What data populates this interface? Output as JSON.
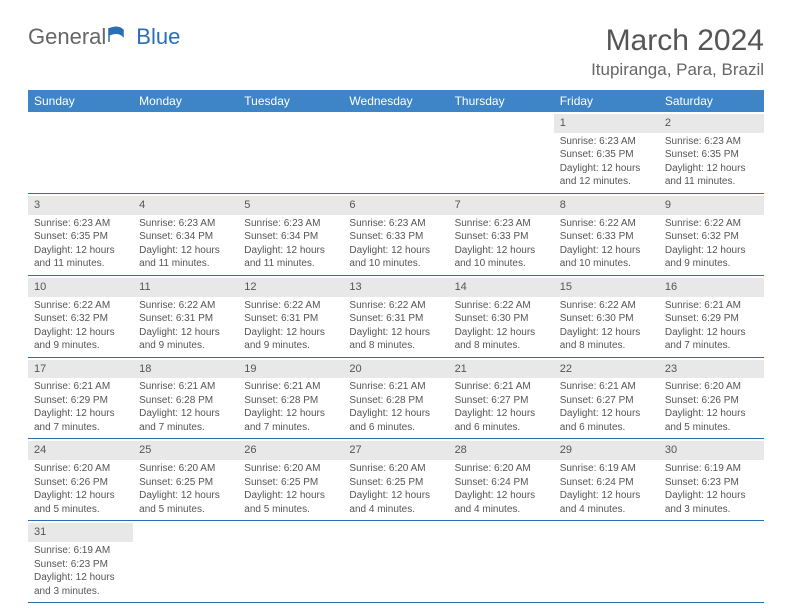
{
  "logo": {
    "text1": "General",
    "text2": "Blue"
  },
  "title": "March 2024",
  "location": "Itupiranga, Para, Brazil",
  "weekdays": [
    "Sunday",
    "Monday",
    "Tuesday",
    "Wednesday",
    "Thursday",
    "Friday",
    "Saturday"
  ],
  "colors": {
    "header_bg": "#3d85c6",
    "header_text": "#ffffff",
    "daynum_bg": "#e8e8e8",
    "row_border": "#2a6fb5",
    "text": "#555555"
  },
  "cells": [
    [
      {
        "n": "",
        "lines": []
      },
      {
        "n": "",
        "lines": []
      },
      {
        "n": "",
        "lines": []
      },
      {
        "n": "",
        "lines": []
      },
      {
        "n": "",
        "lines": []
      },
      {
        "n": "1",
        "lines": [
          "Sunrise: 6:23 AM",
          "Sunset: 6:35 PM",
          "Daylight: 12 hours",
          "and 12 minutes."
        ]
      },
      {
        "n": "2",
        "lines": [
          "Sunrise: 6:23 AM",
          "Sunset: 6:35 PM",
          "Daylight: 12 hours",
          "and 11 minutes."
        ]
      }
    ],
    [
      {
        "n": "3",
        "lines": [
          "Sunrise: 6:23 AM",
          "Sunset: 6:35 PM",
          "Daylight: 12 hours",
          "and 11 minutes."
        ]
      },
      {
        "n": "4",
        "lines": [
          "Sunrise: 6:23 AM",
          "Sunset: 6:34 PM",
          "Daylight: 12 hours",
          "and 11 minutes."
        ]
      },
      {
        "n": "5",
        "lines": [
          "Sunrise: 6:23 AM",
          "Sunset: 6:34 PM",
          "Daylight: 12 hours",
          "and 11 minutes."
        ]
      },
      {
        "n": "6",
        "lines": [
          "Sunrise: 6:23 AM",
          "Sunset: 6:33 PM",
          "Daylight: 12 hours",
          "and 10 minutes."
        ]
      },
      {
        "n": "7",
        "lines": [
          "Sunrise: 6:23 AM",
          "Sunset: 6:33 PM",
          "Daylight: 12 hours",
          "and 10 minutes."
        ]
      },
      {
        "n": "8",
        "lines": [
          "Sunrise: 6:22 AM",
          "Sunset: 6:33 PM",
          "Daylight: 12 hours",
          "and 10 minutes."
        ]
      },
      {
        "n": "9",
        "lines": [
          "Sunrise: 6:22 AM",
          "Sunset: 6:32 PM",
          "Daylight: 12 hours",
          "and 9 minutes."
        ]
      }
    ],
    [
      {
        "n": "10",
        "lines": [
          "Sunrise: 6:22 AM",
          "Sunset: 6:32 PM",
          "Daylight: 12 hours",
          "and 9 minutes."
        ]
      },
      {
        "n": "11",
        "lines": [
          "Sunrise: 6:22 AM",
          "Sunset: 6:31 PM",
          "Daylight: 12 hours",
          "and 9 minutes."
        ]
      },
      {
        "n": "12",
        "lines": [
          "Sunrise: 6:22 AM",
          "Sunset: 6:31 PM",
          "Daylight: 12 hours",
          "and 9 minutes."
        ]
      },
      {
        "n": "13",
        "lines": [
          "Sunrise: 6:22 AM",
          "Sunset: 6:31 PM",
          "Daylight: 12 hours",
          "and 8 minutes."
        ]
      },
      {
        "n": "14",
        "lines": [
          "Sunrise: 6:22 AM",
          "Sunset: 6:30 PM",
          "Daylight: 12 hours",
          "and 8 minutes."
        ]
      },
      {
        "n": "15",
        "lines": [
          "Sunrise: 6:22 AM",
          "Sunset: 6:30 PM",
          "Daylight: 12 hours",
          "and 8 minutes."
        ]
      },
      {
        "n": "16",
        "lines": [
          "Sunrise: 6:21 AM",
          "Sunset: 6:29 PM",
          "Daylight: 12 hours",
          "and 7 minutes."
        ]
      }
    ],
    [
      {
        "n": "17",
        "lines": [
          "Sunrise: 6:21 AM",
          "Sunset: 6:29 PM",
          "Daylight: 12 hours",
          "and 7 minutes."
        ]
      },
      {
        "n": "18",
        "lines": [
          "Sunrise: 6:21 AM",
          "Sunset: 6:28 PM",
          "Daylight: 12 hours",
          "and 7 minutes."
        ]
      },
      {
        "n": "19",
        "lines": [
          "Sunrise: 6:21 AM",
          "Sunset: 6:28 PM",
          "Daylight: 12 hours",
          "and 7 minutes."
        ]
      },
      {
        "n": "20",
        "lines": [
          "Sunrise: 6:21 AM",
          "Sunset: 6:28 PM",
          "Daylight: 12 hours",
          "and 6 minutes."
        ]
      },
      {
        "n": "21",
        "lines": [
          "Sunrise: 6:21 AM",
          "Sunset: 6:27 PM",
          "Daylight: 12 hours",
          "and 6 minutes."
        ]
      },
      {
        "n": "22",
        "lines": [
          "Sunrise: 6:21 AM",
          "Sunset: 6:27 PM",
          "Daylight: 12 hours",
          "and 6 minutes."
        ]
      },
      {
        "n": "23",
        "lines": [
          "Sunrise: 6:20 AM",
          "Sunset: 6:26 PM",
          "Daylight: 12 hours",
          "and 5 minutes."
        ]
      }
    ],
    [
      {
        "n": "24",
        "lines": [
          "Sunrise: 6:20 AM",
          "Sunset: 6:26 PM",
          "Daylight: 12 hours",
          "and 5 minutes."
        ]
      },
      {
        "n": "25",
        "lines": [
          "Sunrise: 6:20 AM",
          "Sunset: 6:25 PM",
          "Daylight: 12 hours",
          "and 5 minutes."
        ]
      },
      {
        "n": "26",
        "lines": [
          "Sunrise: 6:20 AM",
          "Sunset: 6:25 PM",
          "Daylight: 12 hours",
          "and 5 minutes."
        ]
      },
      {
        "n": "27",
        "lines": [
          "Sunrise: 6:20 AM",
          "Sunset: 6:25 PM",
          "Daylight: 12 hours",
          "and 4 minutes."
        ]
      },
      {
        "n": "28",
        "lines": [
          "Sunrise: 6:20 AM",
          "Sunset: 6:24 PM",
          "Daylight: 12 hours",
          "and 4 minutes."
        ]
      },
      {
        "n": "29",
        "lines": [
          "Sunrise: 6:19 AM",
          "Sunset: 6:24 PM",
          "Daylight: 12 hours",
          "and 4 minutes."
        ]
      },
      {
        "n": "30",
        "lines": [
          "Sunrise: 6:19 AM",
          "Sunset: 6:23 PM",
          "Daylight: 12 hours",
          "and 3 minutes."
        ]
      }
    ],
    [
      {
        "n": "31",
        "lines": [
          "Sunrise: 6:19 AM",
          "Sunset: 6:23 PM",
          "Daylight: 12 hours",
          "and 3 minutes."
        ]
      },
      {
        "n": "",
        "lines": []
      },
      {
        "n": "",
        "lines": []
      },
      {
        "n": "",
        "lines": []
      },
      {
        "n": "",
        "lines": []
      },
      {
        "n": "",
        "lines": []
      },
      {
        "n": "",
        "lines": []
      }
    ]
  ]
}
